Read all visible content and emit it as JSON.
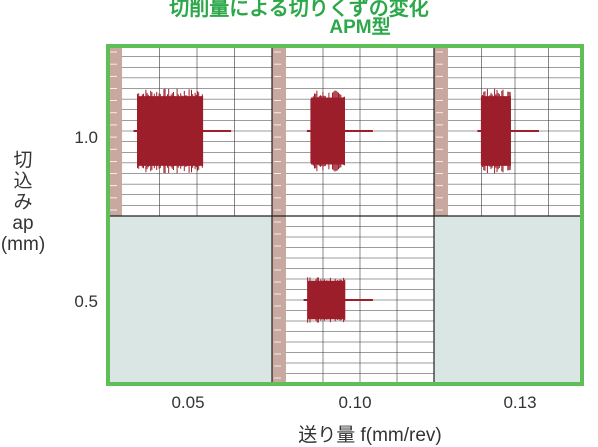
{
  "header": {
    "clipped_line": "切削量による切りくずの変化",
    "subtitle": "APM型"
  },
  "chart_data": {
    "type": "heatmap",
    "title": "APM型",
    "xlabel": "送り量 f(mm/rev)",
    "ylabel_parts": [
      "切",
      "込",
      "み",
      "ap",
      "(mm)"
    ],
    "x_categories": [
      "0.05",
      "0.10",
      "0.13"
    ],
    "y_categories": [
      "1.0",
      "0.5"
    ],
    "cells": [
      {
        "ap": "1.0",
        "f": "0.05",
        "measured": true
      },
      {
        "ap": "1.0",
        "f": "0.10",
        "measured": true
      },
      {
        "ap": "1.0",
        "f": "0.13",
        "measured": true
      },
      {
        "ap": "0.5",
        "f": "0.05",
        "measured": false
      },
      {
        "ap": "0.5",
        "f": "0.10",
        "measured": true
      },
      {
        "ap": "0.5",
        "f": "0.13",
        "measured": false
      }
    ],
    "colors": {
      "frame": "#5fbf56",
      "empty_cell": "#d9e6e4",
      "signal": "#9c1f2b",
      "strip": "#c9a8a0",
      "gridline": "#3a3a3a"
    }
  }
}
